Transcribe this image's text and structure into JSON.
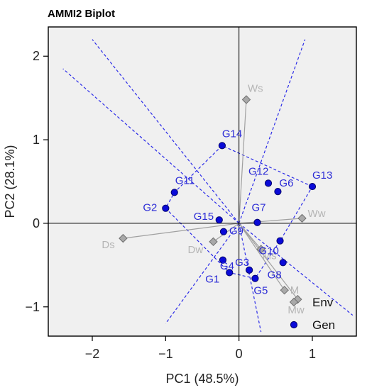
{
  "chart_data": {
    "type": "scatter",
    "title": "AMMI2 Biplot",
    "xlabel": "PC1 (48.5%)",
    "ylabel": "PC2 (28.1%)",
    "xlim": [
      -2.6,
      1.6
    ],
    "ylim": [
      -1.35,
      2.35
    ],
    "xticks": [
      -2,
      -1,
      0,
      1
    ],
    "yticks": [
      -1,
      0,
      1,
      2
    ],
    "grid": false,
    "legend_position": "bottom-right",
    "legend": [
      {
        "label": "Env",
        "marker": "diamond",
        "color": "#a9a9a9"
      },
      {
        "label": "Gen",
        "marker": "circle",
        "color": "#0a0ad8"
      }
    ],
    "series": [
      {
        "name": "Gen",
        "color": "#0a0ad8",
        "points": [
          {
            "label": "G1",
            "x": -0.13,
            "y": -0.59
          },
          {
            "label": "G2",
            "x": -1.0,
            "y": 0.18
          },
          {
            "label": "G3",
            "x": 0.14,
            "y": -0.56
          },
          {
            "label": "G4",
            "x": -0.22,
            "y": -0.44
          },
          {
            "label": "G5",
            "x": 0.22,
            "y": -0.66
          },
          {
            "label": "G6",
            "x": 0.53,
            "y": 0.38
          },
          {
            "label": "G7",
            "x": 0.25,
            "y": 0.01
          },
          {
            "label": "G8",
            "x": 0.6,
            "y": -0.47
          },
          {
            "label": "G9",
            "x": -0.21,
            "y": -0.1
          },
          {
            "label": "G10",
            "x": 0.56,
            "y": -0.21
          },
          {
            "label": "G11",
            "x": -0.88,
            "y": 0.37
          },
          {
            "label": "G12",
            "x": 0.4,
            "y": 0.48
          },
          {
            "label": "G13",
            "x": 1.0,
            "y": 0.44
          },
          {
            "label": "G14",
            "x": -0.23,
            "y": 0.93
          },
          {
            "label": "G15",
            "x": -0.27,
            "y": 0.04
          }
        ]
      },
      {
        "name": "Env",
        "color": "#a9a9a9",
        "points": [
          {
            "label": "Ws",
            "x": 0.1,
            "y": 1.48
          },
          {
            "label": "Ds",
            "x": -1.58,
            "y": -0.18
          },
          {
            "label": "Dw",
            "x": -0.35,
            "y": -0.22
          },
          {
            "label": "Ms",
            "x": 0.3,
            "y": -0.31
          },
          {
            "label": "Ww",
            "x": 0.86,
            "y": 0.06
          },
          {
            "label": "Mw",
            "x": 0.8,
            "y": -0.91
          },
          {
            "label": "M",
            "x": 0.62,
            "y": -0.8
          }
        ]
      }
    ],
    "polygon_vertices": [
      "G13",
      "G14",
      "G11",
      "G2",
      "G1",
      "G5",
      "G10"
    ],
    "sector_rays": [
      [
        -2.0,
        2.2
      ],
      [
        -2.4,
        1.85
      ],
      [
        0.9,
        2.2
      ],
      [
        -1.0,
        -1.2
      ],
      [
        0.3,
        -1.3
      ],
      [
        1.55,
        -1.1
      ]
    ]
  }
}
